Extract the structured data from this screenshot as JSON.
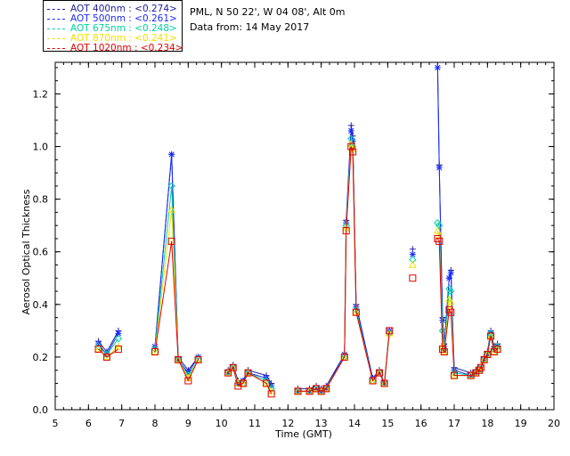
{
  "legend": [
    {
      "label": "AOT  400nm : <0.274>",
      "color": "#2020a0"
    },
    {
      "label": "AOT  500nm : <0.261>",
      "color": "#1a2cff"
    },
    {
      "label": "AOT  675nm : <0.248>",
      "color": "#00d2a0"
    },
    {
      "label": "AOT  870nm : <0.241>",
      "color": "#f0e000"
    },
    {
      "label": "AOT 1020nm : <0.234>",
      "color": "#e00000"
    }
  ],
  "info": {
    "location": "PML, N 50 22', W 04 08', Alt 0m",
    "date": "Data from: 14 May 2017"
  },
  "chart_data": {
    "type": "line",
    "xlabel": "Time (GMT)",
    "ylabel": "Aerosol Optical Thickness",
    "xlim": [
      5,
      20
    ],
    "ylim": [
      0,
      1.32
    ],
    "xticks": [
      "5",
      "6",
      "7",
      "8",
      "9",
      "10",
      "11",
      "12",
      "13",
      "14",
      "15",
      "16",
      "17",
      "18",
      "19",
      "20"
    ],
    "yticks": [
      "0.0",
      "0.2",
      "0.4",
      "0.6",
      "0.8",
      "1.0",
      "1.2"
    ],
    "x": [
      6.3,
      6.55,
      6.9,
      8.0,
      8.5,
      8.7,
      9.0,
      9.3,
      10.2,
      10.35,
      10.5,
      10.65,
      10.8,
      11.35,
      11.5,
      12.3,
      12.65,
      12.85,
      13.0,
      13.15,
      13.7,
      13.75,
      13.9,
      13.95,
      14.05,
      14.55,
      14.75,
      14.9,
      15.05,
      15.75,
      16.5,
      16.55,
      16.65,
      16.7,
      16.85,
      16.9,
      17.0,
      17.5,
      17.65,
      17.75,
      17.8,
      17.9,
      18.0,
      18.1,
      18.2,
      18.3
    ],
    "series": [
      {
        "name": "AOT  400nm",
        "color": "#2020a0",
        "marker": "plus",
        "values": [
          0.26,
          0.22,
          0.3,
          0.24,
          0.97,
          0.2,
          0.15,
          0.2,
          0.15,
          0.17,
          0.11,
          0.11,
          0.15,
          0.13,
          0.1,
          0.08,
          0.08,
          0.09,
          0.08,
          0.09,
          0.21,
          0.72,
          1.08,
          1.04,
          0.4,
          0.12,
          0.15,
          0.1,
          0.3,
          0.61,
          1.33,
          0.93,
          0.35,
          0.25,
          0.5,
          0.53,
          0.16,
          0.14,
          0.15,
          0.15,
          0.16,
          0.2,
          0.22,
          0.3,
          0.24,
          0.25
        ]
      },
      {
        "name": "AOT  500nm",
        "color": "#1a2cff",
        "marker": "star",
        "values": [
          0.25,
          0.21,
          0.29,
          0.24,
          0.97,
          0.19,
          0.14,
          0.2,
          0.14,
          0.16,
          0.1,
          0.11,
          0.14,
          0.12,
          0.09,
          0.07,
          0.07,
          0.08,
          0.07,
          0.08,
          0.21,
          0.71,
          1.06,
          1.02,
          0.39,
          0.12,
          0.14,
          0.1,
          0.3,
          0.59,
          1.3,
          0.92,
          0.34,
          0.24,
          0.5,
          0.52,
          0.15,
          0.13,
          0.14,
          0.15,
          0.16,
          0.19,
          0.21,
          0.29,
          0.23,
          0.24
        ]
      },
      {
        "name": "AOT  675nm",
        "color": "#00d2a0",
        "marker": "diamond",
        "values": [
          0.24,
          0.21,
          0.27,
          0.23,
          0.85,
          0.19,
          0.13,
          0.19,
          0.14,
          0.16,
          0.1,
          0.1,
          0.14,
          0.11,
          0.08,
          0.07,
          0.07,
          0.08,
          0.07,
          0.08,
          0.2,
          0.7,
          1.03,
          1.0,
          0.38,
          0.11,
          0.14,
          0.1,
          0.29,
          0.57,
          0.71,
          0.7,
          0.3,
          0.23,
          0.46,
          0.45,
          0.14,
          0.13,
          0.14,
          0.15,
          0.16,
          0.19,
          0.21,
          0.29,
          0.23,
          0.24
        ]
      },
      {
        "name": "AOT  870nm",
        "color": "#f0e000",
        "marker": "triangle",
        "values": [
          0.23,
          0.2,
          0.24,
          0.22,
          0.76,
          0.19,
          0.12,
          0.19,
          0.14,
          0.16,
          0.1,
          0.1,
          0.14,
          0.1,
          0.07,
          0.07,
          0.07,
          0.08,
          0.07,
          0.08,
          0.2,
          0.69,
          1.01,
          0.99,
          0.37,
          0.11,
          0.14,
          0.1,
          0.29,
          0.55,
          0.68,
          0.66,
          0.24,
          0.22,
          0.42,
          0.41,
          0.13,
          0.13,
          0.14,
          0.15,
          0.16,
          0.19,
          0.21,
          0.28,
          0.22,
          0.23
        ]
      },
      {
        "name": "AOT 1020nm",
        "color": "#e00000",
        "marker": "square",
        "values": [
          0.23,
          0.2,
          0.23,
          0.22,
          0.64,
          0.19,
          0.11,
          0.19,
          0.14,
          0.16,
          0.09,
          0.1,
          0.14,
          0.1,
          0.06,
          0.07,
          0.07,
          0.08,
          0.07,
          0.08,
          0.2,
          0.68,
          1.0,
          0.98,
          0.37,
          0.11,
          0.14,
          0.1,
          0.3,
          0.5,
          0.65,
          0.64,
          0.23,
          0.22,
          0.38,
          0.37,
          0.13,
          0.13,
          0.14,
          0.15,
          0.16,
          0.19,
          0.21,
          0.28,
          0.22,
          0.23
        ]
      }
    ]
  }
}
